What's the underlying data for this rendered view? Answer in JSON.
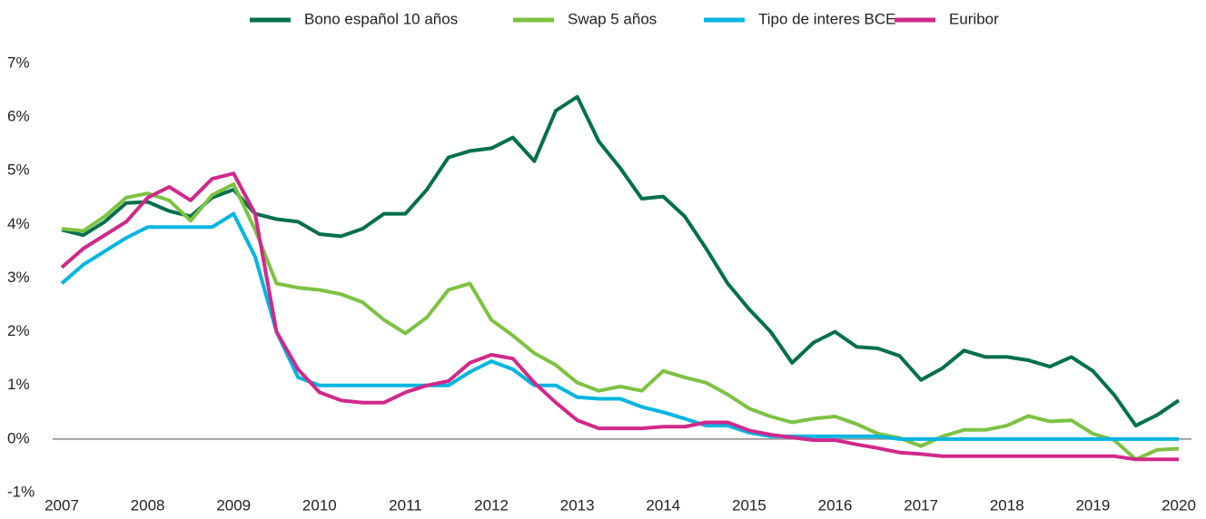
{
  "chart_data": {
    "type": "line",
    "categories": [
      "2007",
      null,
      null,
      null,
      "2008",
      null,
      null,
      null,
      "2009",
      null,
      null,
      null,
      "2010",
      null,
      null,
      null,
      "2011",
      null,
      null,
      null,
      "2012",
      null,
      null,
      null,
      "2013",
      null,
      null,
      null,
      "2014",
      null,
      null,
      null,
      "2015",
      null,
      null,
      null,
      "2016",
      null,
      null,
      null,
      "2017",
      null,
      null,
      null,
      "2018",
      null,
      null,
      null,
      "2019",
      null,
      null,
      null,
      "2020"
    ],
    "series": [
      {
        "name": "Bono español 10 años",
        "color": "#00704a",
        "values": [
          3.9,
          3.8,
          4.05,
          4.4,
          4.42,
          4.25,
          4.15,
          4.5,
          4.65,
          4.2,
          4.1,
          4.05,
          3.82,
          3.78,
          3.92,
          4.2,
          4.2,
          4.65,
          5.25,
          5.37,
          5.42,
          5.62,
          5.18,
          6.12,
          6.38,
          5.55,
          5.05,
          4.48,
          4.52,
          4.15,
          3.55,
          2.9,
          2.42,
          2.0,
          1.42,
          1.8,
          2.0,
          1.72,
          1.69,
          1.55,
          1.1,
          1.32,
          1.65,
          1.53,
          1.53,
          1.47,
          1.35,
          1.53,
          1.27,
          0.82,
          0.25,
          0.45,
          0.72
        ]
      },
      {
        "name": "Swap 5 años",
        "color": "#7dc242",
        "values": [
          3.92,
          3.88,
          4.15,
          4.5,
          4.58,
          4.45,
          4.07,
          4.55,
          4.75,
          3.9,
          2.9,
          2.82,
          2.78,
          2.7,
          2.55,
          2.22,
          1.97,
          2.27,
          2.78,
          2.9,
          2.22,
          1.93,
          1.6,
          1.38,
          1.05,
          0.9,
          0.98,
          0.9,
          1.27,
          1.15,
          1.05,
          0.83,
          0.57,
          0.42,
          0.31,
          0.38,
          0.42,
          0.28,
          0.1,
          0.02,
          -0.13,
          0.05,
          0.17,
          0.17,
          0.25,
          0.43,
          0.33,
          0.35,
          0.1,
          -0.02,
          -0.38,
          -0.2,
          -0.18
        ]
      },
      {
        "name": "Tipo de interes BCE",
        "color": "#00b5e2",
        "values": [
          2.9,
          3.25,
          3.5,
          3.75,
          3.95,
          3.95,
          3.95,
          3.95,
          4.2,
          3.4,
          2.0,
          1.15,
          1.0,
          1.0,
          1.0,
          1.0,
          1.0,
          1.0,
          1.0,
          1.25,
          1.45,
          1.3,
          1.0,
          1.0,
          0.78,
          0.75,
          0.75,
          0.6,
          0.5,
          0.38,
          0.25,
          0.25,
          0.12,
          0.05,
          0.05,
          0.05,
          0.05,
          0.05,
          0.05,
          0,
          0,
          0,
          0,
          0,
          0,
          0,
          0,
          0,
          0,
          0,
          0,
          0,
          0
        ]
      },
      {
        "name": "Euribor",
        "color": "#d1288b",
        "values": [
          3.2,
          3.55,
          3.8,
          4.05,
          4.5,
          4.7,
          4.45,
          4.85,
          4.95,
          4.2,
          2.0,
          1.3,
          0.87,
          0.72,
          0.68,
          0.68,
          0.87,
          1.0,
          1.08,
          1.42,
          1.57,
          1.5,
          1.05,
          0.68,
          0.35,
          0.2,
          0.2,
          0.2,
          0.23,
          0.23,
          0.31,
          0.31,
          0.16,
          0.08,
          0.03,
          -0.02,
          -0.02,
          -0.1,
          -0.17,
          -0.25,
          -0.28,
          -0.32,
          -0.32,
          -0.32,
          -0.32,
          -0.32,
          -0.32,
          -0.32,
          -0.32,
          -0.32,
          -0.38,
          -0.38,
          -0.38
        ]
      }
    ],
    "ylim": [
      -1,
      7
    ],
    "yticks": [
      {
        "value": -1,
        "label": "-1%"
      },
      {
        "value": 0,
        "label": "0%"
      },
      {
        "value": 1,
        "label": "1%"
      },
      {
        "value": 2,
        "label": "2%"
      },
      {
        "value": 3,
        "label": "3%"
      },
      {
        "value": 4,
        "label": "4%"
      },
      {
        "value": 5,
        "label": "5%"
      },
      {
        "value": 6,
        "label": "6%"
      },
      {
        "value": 7,
        "label": "7%"
      }
    ],
    "legend": "top"
  }
}
